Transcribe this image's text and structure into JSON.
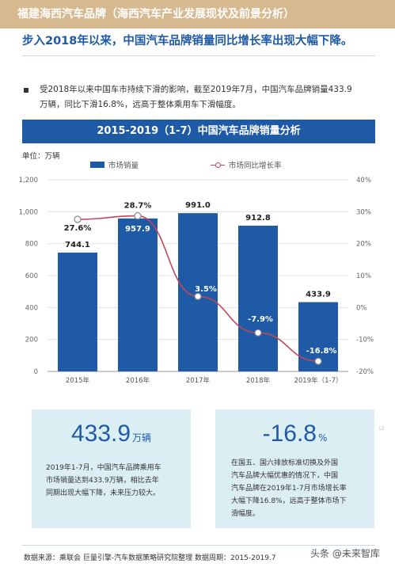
{
  "header": {
    "title": "福建海西汽车品牌（海西汽车产业发展现状及前景分析）",
    "headline": "步入2018年以来，中国汽车品牌销量同比增长率出现大幅下降。"
  },
  "intro": {
    "line1": "受2018年以来中国车市持续下滑的影响，截至2019年7月，中国汽车品牌销量433.9",
    "line2": "万辆，同比下滑16.8%，远高于整体乘用车下滑幅度。"
  },
  "chart_banner": "2015-2019（1-7）中国汽车品牌销量分析",
  "chart_data": {
    "type": "bar",
    "title": "2015-2019（1-7）中国汽车品牌销量分析",
    "unit_label": "单位：万辆",
    "categories": [
      "2015年",
      "2016年",
      "2017年",
      "2018年",
      "2019年（1-7）"
    ],
    "series": [
      {
        "name": "市场销量",
        "type": "bar",
        "axis": "left",
        "values": [
          744.1,
          957.9,
          991.0,
          912.8,
          433.9
        ],
        "labels": [
          "744.1",
          "957.9",
          "991.0",
          "912.8",
          "433.9"
        ],
        "color": "#1f5aa6"
      },
      {
        "name": "市场同比增长率",
        "type": "line",
        "axis": "right",
        "values": [
          27.6,
          28.7,
          3.5,
          -7.9,
          -16.8
        ],
        "labels": [
          "27.6%",
          "28.7%",
          "3.5%",
          "-7.9%",
          "-16.8%"
        ],
        "color": "#c0475a"
      }
    ],
    "ylim_left": [
      0,
      1200
    ],
    "yticks_left": [
      "0",
      "200",
      "400",
      "600",
      "800",
      "1,000",
      "1,200"
    ],
    "ylim_right": [
      -20,
      40
    ],
    "yticks_right": [
      "-20%",
      "-10%",
      "0%",
      "10%",
      "20%",
      "30%",
      "40%"
    ],
    "grid": true,
    "legend": "top"
  },
  "cards": [
    {
      "value": "433.9",
      "suffix": "万辆",
      "lines": [
        "2019年1-7月，中国汽车品牌乘用车",
        "市场销量达到433.9万辆，相比去年",
        "同期出现大幅下降，未来压力较大。"
      ]
    },
    {
      "value": "-16.8",
      "suffix": "%",
      "lines": [
        "在国五、国六排放标准切换及外国",
        "汽车品牌大幅优惠的情况下，中国",
        "汽车品牌在2019年1-7月市场增长率",
        "大幅下降16.8%，远高于整体市场下",
        "滑幅度。"
      ]
    }
  ],
  "footer": {
    "source": "数据来源：乘联会  巨量引擎-汽车数据策略研究院整理  数据周期：2015-2019.7",
    "watermark": "头条 @未来智库",
    "page": "12"
  },
  "colors": {
    "accent": "#1f5aa6",
    "line": "#c0475a",
    "banner": "#d7b98f",
    "card": "#dbeef4"
  }
}
